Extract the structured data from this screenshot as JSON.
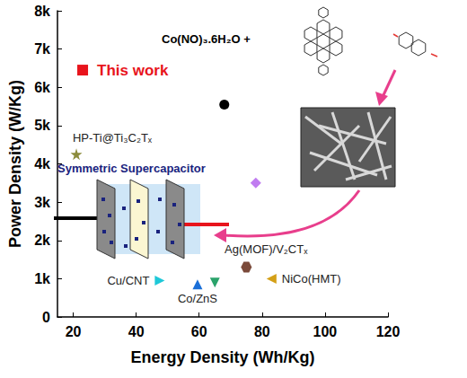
{
  "chart_data": {
    "type": "scatter",
    "x_label": "Energy Density (Wh/Kg)",
    "y_label": "Power Density (W/Kg)",
    "xlim": [
      15,
      120
    ],
    "xticks": [
      20,
      40,
      60,
      80,
      100,
      120
    ],
    "ylim": [
      0,
      8000
    ],
    "yticks": [
      0,
      {
        "value": 1000,
        "label": "1k"
      },
      {
        "value": 2000,
        "label": "2k"
      },
      {
        "value": 3000,
        "label": "3k"
      },
      {
        "value": 4000,
        "label": "4k"
      },
      {
        "value": 5000,
        "label": "5k"
      },
      {
        "value": 6000,
        "label": "6k"
      },
      {
        "value": 7000,
        "label": "7k"
      },
      {
        "value": 8000,
        "label": "8k"
      }
    ],
    "grid": false,
    "annotations": [
      "Symmetric Supercapacitor",
      "Co(NO)₃.6H₂O +"
    ],
    "series": [
      {
        "name": "This work",
        "x": [
          23
        ],
        "values": [
          6450
        ],
        "color": "#e8141c",
        "marker": "square"
      },
      {
        "name": "HP-Ti@Ti₃C₂Tₓ",
        "x": [
          21
        ],
        "values": [
          4250
        ],
        "color": "#8c8c3c",
        "marker": "star"
      },
      {
        "x": [
          68
        ],
        "values": [
          5550
        ],
        "color": "#000000",
        "marker": "circle"
      },
      {
        "x": [
          78
        ],
        "values": [
          3500
        ],
        "color": "#c07cf0",
        "marker": "diamond"
      },
      {
        "name": "Cu/CNT",
        "x": [
          47.5
        ],
        "values": [
          950
        ],
        "color": "#1ec8d8",
        "marker": "triangle-right"
      },
      {
        "name": "Co/ZnS",
        "x": [
          59.5
        ],
        "values": [
          850
        ],
        "color": "#1a6fd8",
        "marker": "triangle-up"
      },
      {
        "x": [
          65
        ],
        "values": [
          900
        ],
        "color": "#2aa36b",
        "marker": "triangle-down"
      },
      {
        "name": "Ag(MOF)/V₂CTₓ",
        "x": [
          75
        ],
        "values": [
          1300
        ],
        "color": "#7b4a3a",
        "marker": "hexagon"
      },
      {
        "name": "NiCo(HMT)",
        "x": [
          83
        ],
        "values": [
          1000
        ],
        "color": "#d4a017",
        "marker": "triangle-left"
      }
    ]
  }
}
